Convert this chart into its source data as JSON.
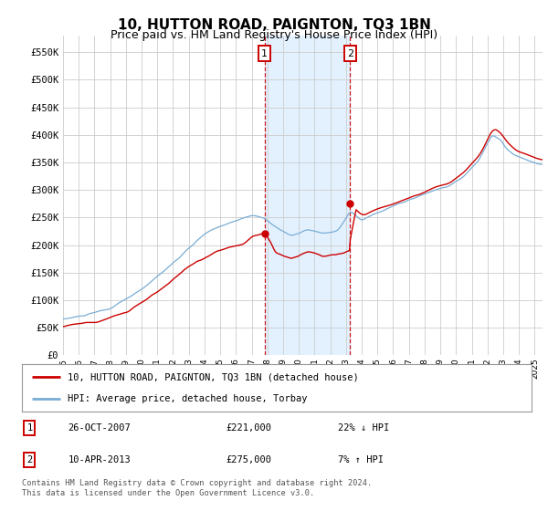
{
  "title": "10, HUTTON ROAD, PAIGNTON, TQ3 1BN",
  "subtitle": "Price paid vs. HM Land Registry's House Price Index (HPI)",
  "ylabel_ticks": [
    "£0",
    "£50K",
    "£100K",
    "£150K",
    "£200K",
    "£250K",
    "£300K",
    "£350K",
    "£400K",
    "£450K",
    "£500K",
    "£550K"
  ],
  "ytick_values": [
    0,
    50000,
    100000,
    150000,
    200000,
    250000,
    300000,
    350000,
    400000,
    450000,
    500000,
    550000
  ],
  "ylim": [
    0,
    580000
  ],
  "xlim_start": 1995.0,
  "xlim_end": 2025.5,
  "xtick_years": [
    1995,
    1996,
    1997,
    1998,
    1999,
    2000,
    2001,
    2002,
    2003,
    2004,
    2005,
    2006,
    2007,
    2008,
    2009,
    2010,
    2011,
    2012,
    2013,
    2014,
    2015,
    2016,
    2017,
    2018,
    2019,
    2020,
    2021,
    2022,
    2023,
    2024,
    2025
  ],
  "hpi_color": "#7aadd4",
  "price_color": "#cc0000",
  "sale1_x": 2007.82,
  "sale1_y": 221000,
  "sale2_x": 2013.27,
  "sale2_y": 275000,
  "shade_color": "#ddeeff",
  "marker_box_color": "#cc0000",
  "legend_house": "10, HUTTON ROAD, PAIGNTON, TQ3 1BN (detached house)",
  "legend_hpi": "HPI: Average price, detached house, Torbay",
  "sale1_date": "26-OCT-2007",
  "sale1_price": "£221,000",
  "sale1_hpi": "22% ↓ HPI",
  "sale2_date": "10-APR-2013",
  "sale2_price": "£275,000",
  "sale2_hpi": "7% ↑ HPI",
  "footnote": "Contains HM Land Registry data © Crown copyright and database right 2024.\nThis data is licensed under the Open Government Licence v3.0.",
  "bg_color": "#ffffff",
  "grid_color": "#cccccc"
}
